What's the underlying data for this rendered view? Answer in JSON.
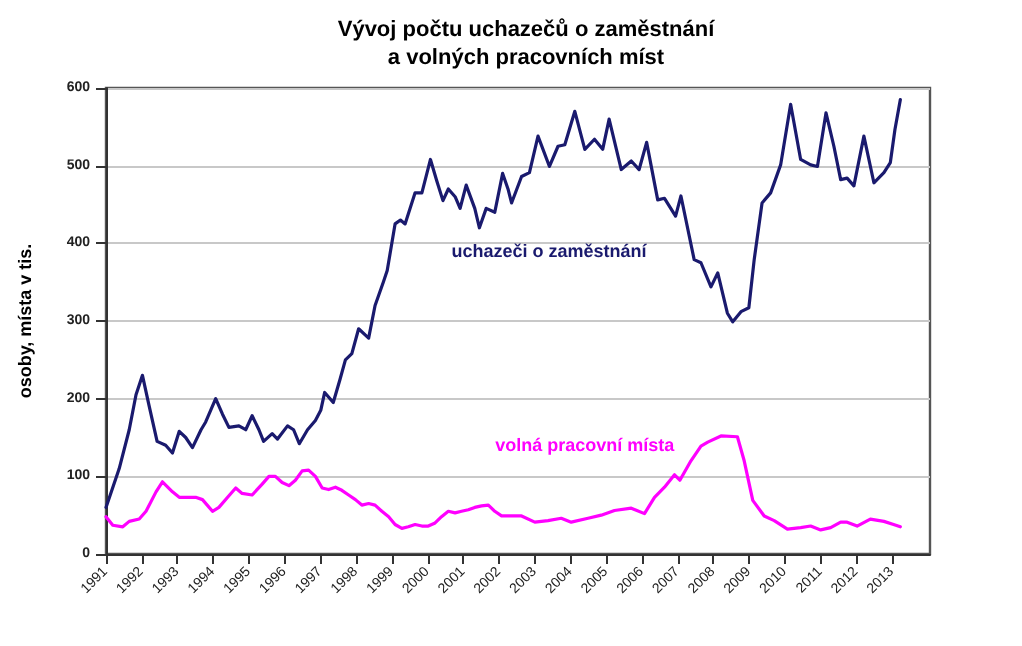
{
  "chart_data": {
    "type": "line",
    "title": "Vývoj počtu uchazečů o zaměstnání\na volných pracovních míst",
    "ylabel": "osoby, místa v tis.",
    "xlim": [
      1991,
      2014.06
    ],
    "xticks": [
      1991,
      1992,
      1993,
      1994,
      1995,
      1996,
      1997,
      1998,
      1999,
      2000,
      2001,
      2002,
      2003,
      2004,
      2005,
      2006,
      2007,
      2008,
      2009,
      2010,
      2011,
      2012,
      2013
    ],
    "ylim": [
      0,
      600
    ],
    "yticks": [
      0,
      100,
      200,
      300,
      400,
      500,
      600
    ],
    "grid": "y",
    "legend": false,
    "marker": "none",
    "line_style": "solid",
    "series": [
      {
        "name": "uchazeči o zaměstnání",
        "color": "#1a1a6e",
        "x": [
          1991,
          1991.37,
          1991.65,
          1991.84,
          1992.02,
          1992.21,
          1992.43,
          1992.67,
          1992.86,
          1993.05,
          1993.23,
          1993.42,
          1993.66,
          1993.79,
          1994.07,
          1994.26,
          1994.44,
          1994.72,
          1994.91,
          1995.09,
          1995.28,
          1995.41,
          1995.65,
          1995.8,
          1996.08,
          1996.25,
          1996.41,
          1996.64,
          1996.86,
          1997.01,
          1997.12,
          1997.36,
          1997.55,
          1997.7,
          1997.88,
          1998.07,
          1998.35,
          1998.53,
          1998.76,
          1998.87,
          1999.09,
          1999.24,
          1999.37,
          1999.65,
          1999.84,
          2000.08,
          2000.26,
          2000.43,
          2000.58,
          2000.77,
          2000.91,
          2001.08,
          2001.32,
          2001.45,
          2001.64,
          2001.88,
          2002.1,
          2002.25,
          2002.35,
          2002.63,
          2002.85,
          2003.09,
          2003.41,
          2003.65,
          2003.84,
          2004.12,
          2004.4,
          2004.67,
          2004.9,
          2005.08,
          2005.42,
          2005.7,
          2005.92,
          2006.13,
          2006.44,
          2006.63,
          2006.94,
          2007.09,
          2007.46,
          2007.65,
          2007.93,
          2008.12,
          2008.39,
          2008.54,
          2008.77,
          2008.99,
          2009.14,
          2009.36,
          2009.6,
          2009.88,
          2010.16,
          2010.44,
          2010.72,
          2010.91,
          2011.15,
          2011.37,
          2011.56,
          2011.74,
          2011.93,
          2012.21,
          2012.49,
          2012.77,
          2012.95,
          2013.08,
          2013.23
        ],
        "values": [
          60,
          110,
          160,
          205,
          230,
          190,
          145,
          140,
          130,
          158,
          150,
          137,
          160,
          170,
          200,
          180,
          163,
          165,
          160,
          178,
          160,
          145,
          155,
          148,
          165,
          160,
          142,
          160,
          172,
          185,
          208,
          195,
          225,
          250,
          258,
          290,
          278,
          320,
          350,
          365,
          425,
          430,
          425,
          465,
          465,
          508,
          480,
          455,
          470,
          460,
          445,
          475,
          445,
          420,
          445,
          440,
          490,
          470,
          452,
          486,
          491,
          538,
          499,
          525,
          527,
          570,
          521,
          534,
          521,
          560,
          495,
          506,
          495,
          530,
          456,
          458,
          435,
          461,
          379,
          375,
          344,
          362,
          310,
          299,
          312,
          317,
          379,
          452,
          465,
          501,
          579,
          508,
          501,
          499,
          568,
          525,
          482,
          484,
          474,
          538,
          478,
          491,
          504,
          547,
          585
        ]
      },
      {
        "name": "volná pracovní místa",
        "color": "#ff00ff",
        "x": [
          1991,
          1991.19,
          1991.47,
          1991.65,
          1991.93,
          1992.12,
          1992.4,
          1992.58,
          1992.86,
          1993.05,
          1993.33,
          1993.51,
          1993.7,
          1993.98,
          1994.16,
          1994.44,
          1994.63,
          1994.81,
          1995.09,
          1995.37,
          1995.56,
          1995.74,
          1995.93,
          1996.12,
          1996.3,
          1996.49,
          1996.67,
          1996.86,
          1997.05,
          1997.23,
          1997.42,
          1997.6,
          1997.79,
          1997.98,
          1998.16,
          1998.35,
          1998.53,
          1998.72,
          1998.91,
          1999.09,
          1999.28,
          1999.46,
          1999.65,
          1999.84,
          2000.02,
          2000.21,
          2000.39,
          2000.58,
          2000.77,
          2000.95,
          2001.14,
          2001.32,
          2001.51,
          2001.7,
          2001.88,
          2002.07,
          2002.63,
          2003.0,
          2003.37,
          2003.74,
          2004.02,
          2004.49,
          2004.86,
          2005.23,
          2005.7,
          2006.07,
          2006.35,
          2006.63,
          2006.91,
          2007.06,
          2007.37,
          2007.65,
          2007.84,
          2008.21,
          2008.67,
          2008.86,
          2009.1,
          2009.42,
          2009.7,
          2010.07,
          2010.44,
          2010.72,
          2011.0,
          2011.28,
          2011.56,
          2011.74,
          2012.02,
          2012.39,
          2012.77,
          2013.04,
          2013.23
        ],
        "values": [
          48,
          37,
          35,
          42,
          45,
          55,
          80,
          93,
          80,
          73,
          73,
          73,
          70,
          55,
          60,
          75,
          85,
          78,
          76,
          90,
          100,
          100,
          92,
          88,
          95,
          107,
          108,
          100,
          85,
          83,
          86,
          82,
          76,
          70,
          63,
          65,
          63,
          55,
          48,
          38,
          33,
          35,
          38,
          36,
          36,
          40,
          48,
          55,
          53,
          55,
          57,
          60,
          62,
          63,
          55,
          49,
          49,
          41,
          43,
          46,
          41,
          46,
          50,
          56,
          59,
          52,
          73,
          86,
          102,
          95,
          120,
          139,
          144,
          152,
          151,
          120,
          69,
          49,
          43,
          32,
          34,
          36,
          31,
          34,
          41,
          41,
          36,
          45,
          42,
          38,
          35
        ]
      }
    ]
  }
}
